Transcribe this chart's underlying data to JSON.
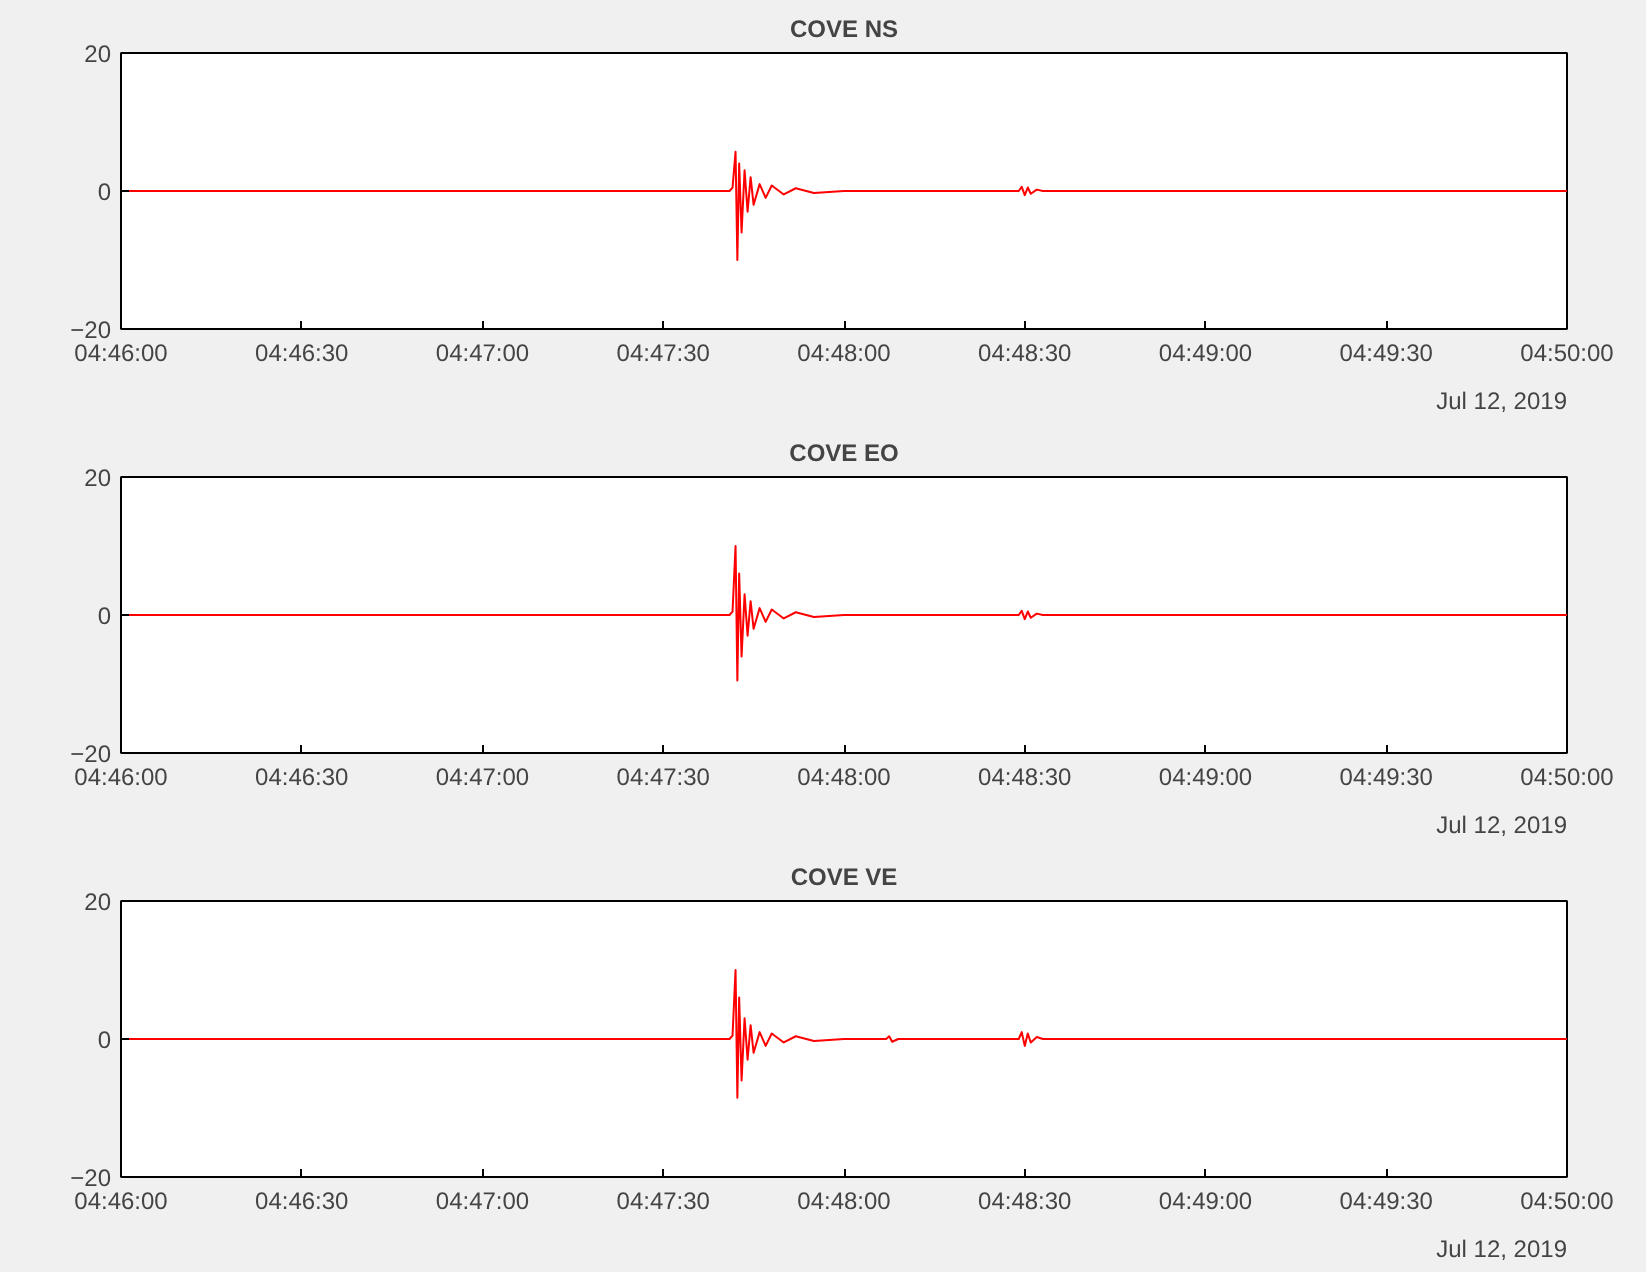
{
  "chart_data": [
    {
      "type": "line",
      "title": "COVE NS",
      "annotations": [
        "Jul 12, 2019"
      ],
      "x": [
        "2019-07-12T04:46:00",
        "2019-07-12T04:47:41",
        "2019-07-12T04:47:41.5",
        "2019-07-12T04:47:42",
        "2019-07-12T04:47:42.3",
        "2019-07-12T04:47:42.6",
        "2019-07-12T04:47:43",
        "2019-07-12T04:47:43.5",
        "2019-07-12T04:47:44",
        "2019-07-12T04:47:44.5",
        "2019-07-12T04:47:45",
        "2019-07-12T04:47:46",
        "2019-07-12T04:47:47",
        "2019-07-12T04:47:48",
        "2019-07-12T04:47:50",
        "2019-07-12T04:47:52",
        "2019-07-12T04:47:55",
        "2019-07-12T04:48:00",
        "2019-07-12T04:48:29",
        "2019-07-12T04:48:29.5",
        "2019-07-12T04:48:30",
        "2019-07-12T04:48:30.5",
        "2019-07-12T04:48:31",
        "2019-07-12T04:48:32",
        "2019-07-12T04:48:33",
        "2019-07-12T04:50:00"
      ],
      "series": [
        {
          "color": "#ff0000",
          "values": [
            0,
            0,
            0.5,
            5.7,
            -10,
            4,
            -6,
            3,
            -3,
            2,
            -2,
            1,
            -1,
            0.8,
            -0.5,
            0.4,
            -0.3,
            0,
            0,
            0.6,
            -0.6,
            0.5,
            -0.4,
            0.2,
            0,
            0
          ]
        }
      ],
      "xlim": [
        "2019-07-12T04:46:00",
        "2019-07-12T04:50:00"
      ],
      "xticks": [
        {
          "value": "2019-07-12T04:46:00",
          "label": "04:46:00"
        },
        {
          "value": "2019-07-12T04:46:30",
          "label": "04:46:30"
        },
        {
          "value": "2019-07-12T04:47:00",
          "label": "04:47:00"
        },
        {
          "value": "2019-07-12T04:47:30",
          "label": "04:47:30"
        },
        {
          "value": "2019-07-12T04:48:00",
          "label": "04:48:00"
        },
        {
          "value": "2019-07-12T04:48:30",
          "label": "04:48:30"
        },
        {
          "value": "2019-07-12T04:49:00",
          "label": "04:49:00"
        },
        {
          "value": "2019-07-12T04:49:30",
          "label": "04:49:30"
        },
        {
          "value": "2019-07-12T04:50:00",
          "label": "04:50:00"
        }
      ],
      "ylim": [
        -20,
        20
      ],
      "yticks": [
        -20,
        0,
        20
      ],
      "grid": false
    },
    {
      "type": "line",
      "title": "COVE EO",
      "annotations": [
        "Jul 12, 2019"
      ],
      "x": [
        "2019-07-12T04:46:00",
        "2019-07-12T04:47:41",
        "2019-07-12T04:47:41.5",
        "2019-07-12T04:47:42",
        "2019-07-12T04:47:42.3",
        "2019-07-12T04:47:42.6",
        "2019-07-12T04:47:43",
        "2019-07-12T04:47:43.5",
        "2019-07-12T04:47:44",
        "2019-07-12T04:47:44.5",
        "2019-07-12T04:47:45",
        "2019-07-12T04:47:46",
        "2019-07-12T04:47:47",
        "2019-07-12T04:47:48",
        "2019-07-12T04:47:50",
        "2019-07-12T04:47:52",
        "2019-07-12T04:47:55",
        "2019-07-12T04:48:00",
        "2019-07-12T04:48:29",
        "2019-07-12T04:48:29.5",
        "2019-07-12T04:48:30",
        "2019-07-12T04:48:30.5",
        "2019-07-12T04:48:31",
        "2019-07-12T04:48:32",
        "2019-07-12T04:48:33",
        "2019-07-12T04:50:00"
      ],
      "series": [
        {
          "color": "#ff0000",
          "values": [
            0,
            0,
            0.5,
            10,
            -9.5,
            6,
            -6,
            3,
            -3,
            2,
            -2,
            1,
            -1,
            0.8,
            -0.5,
            0.4,
            -0.3,
            0,
            0,
            0.6,
            -0.6,
            0.5,
            -0.4,
            0.2,
            0,
            0
          ]
        }
      ],
      "xlim": [
        "2019-07-12T04:46:00",
        "2019-07-12T04:50:00"
      ],
      "xticks": [
        {
          "value": "2019-07-12T04:46:00",
          "label": "04:46:00"
        },
        {
          "value": "2019-07-12T04:46:30",
          "label": "04:46:30"
        },
        {
          "value": "2019-07-12T04:47:00",
          "label": "04:47:00"
        },
        {
          "value": "2019-07-12T04:47:30",
          "label": "04:47:30"
        },
        {
          "value": "2019-07-12T04:48:00",
          "label": "04:48:00"
        },
        {
          "value": "2019-07-12T04:48:30",
          "label": "04:48:30"
        },
        {
          "value": "2019-07-12T04:49:00",
          "label": "04:49:00"
        },
        {
          "value": "2019-07-12T04:49:30",
          "label": "04:49:30"
        },
        {
          "value": "2019-07-12T04:50:00",
          "label": "04:50:00"
        }
      ],
      "ylim": [
        -20,
        20
      ],
      "yticks": [
        -20,
        0,
        20
      ],
      "grid": false
    },
    {
      "type": "line",
      "title": "COVE VE",
      "annotations": [
        "Jul 12, 2019"
      ],
      "x": [
        "2019-07-12T04:46:00",
        "2019-07-12T04:47:41",
        "2019-07-12T04:47:41.5",
        "2019-07-12T04:47:42",
        "2019-07-12T04:47:42.3",
        "2019-07-12T04:47:42.6",
        "2019-07-12T04:47:43",
        "2019-07-12T04:47:43.5",
        "2019-07-12T04:47:44",
        "2019-07-12T04:47:44.5",
        "2019-07-12T04:47:45",
        "2019-07-12T04:47:46",
        "2019-07-12T04:47:47",
        "2019-07-12T04:47:48",
        "2019-07-12T04:47:50",
        "2019-07-12T04:47:52",
        "2019-07-12T04:47:55",
        "2019-07-12T04:48:00",
        "2019-07-12T04:48:07",
        "2019-07-12T04:48:07.5",
        "2019-07-12T04:48:08",
        "2019-07-12T04:48:09",
        "2019-07-12T04:48:29",
        "2019-07-12T04:48:29.5",
        "2019-07-12T04:48:30",
        "2019-07-12T04:48:30.5",
        "2019-07-12T04:48:31",
        "2019-07-12T04:48:32",
        "2019-07-12T04:48:33",
        "2019-07-12T04:50:00"
      ],
      "series": [
        {
          "color": "#ff0000",
          "values": [
            0,
            0,
            0.5,
            10,
            -8.5,
            6,
            -6,
            3,
            -3,
            2,
            -2,
            1,
            -1,
            0.8,
            -0.5,
            0.4,
            -0.3,
            0,
            0,
            0.4,
            -0.4,
            0,
            0,
            1,
            -1,
            0.8,
            -0.5,
            0.3,
            0,
            0
          ]
        }
      ],
      "xlim": [
        "2019-07-12T04:46:00",
        "2019-07-12T04:50:00"
      ],
      "xticks": [
        {
          "value": "2019-07-12T04:46:00",
          "label": "04:46:00"
        },
        {
          "value": "2019-07-12T04:46:30",
          "label": "04:46:30"
        },
        {
          "value": "2019-07-12T04:47:00",
          "label": "04:47:00"
        },
        {
          "value": "2019-07-12T04:47:30",
          "label": "04:47:30"
        },
        {
          "value": "2019-07-12T04:48:00",
          "label": "04:48:00"
        },
        {
          "value": "2019-07-12T04:48:30",
          "label": "04:48:30"
        },
        {
          "value": "2019-07-12T04:49:00",
          "label": "04:49:00"
        },
        {
          "value": "2019-07-12T04:49:30",
          "label": "04:49:30"
        },
        {
          "value": "2019-07-12T04:50:00",
          "label": "04:50:00"
        }
      ],
      "ylim": [
        -20,
        20
      ],
      "yticks": [
        -20,
        0,
        20
      ],
      "grid": false
    }
  ]
}
